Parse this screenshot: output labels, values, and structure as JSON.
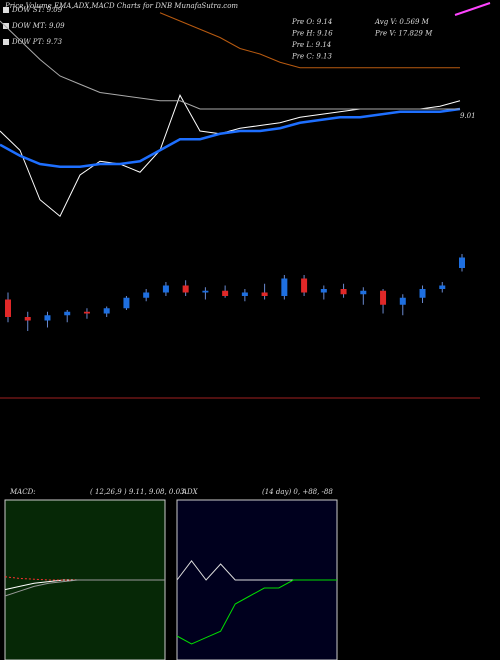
{
  "header": {
    "title": "Price,Volume,EMA,ADX,MACD Charts for DNB MunafaSutra.com",
    "dow": [
      "DOW ST: 9.09",
      "DOW MT: 9.09",
      "DOW PT: 9.73"
    ],
    "stats": [
      "Pre   O: 9.14",
      "Pre   H: 9.16",
      "Pre   L: 9.14",
      "Pre   C: 9.13"
    ],
    "volume": [
      "Avg V: 0.569 M",
      "Pre   V: 17.829 M"
    ]
  },
  "chart_data": [
    {
      "type": "line",
      "annotation": "9.01",
      "ylim": [
        8.6,
        9.4
      ],
      "series": [
        {
          "name": "Price",
          "color": "#ffffff",
          "values": [
            8.96,
            8.89,
            8.71,
            8.65,
            8.8,
            8.85,
            8.84,
            8.81,
            8.89,
            9.09,
            8.96,
            8.95,
            8.97,
            8.98,
            8.99,
            9.01,
            9.02,
            9.03,
            9.04,
            9.04,
            9.04,
            9.04,
            9.05,
            9.07
          ]
        },
        {
          "name": "EMA",
          "color": "#1e6fff",
          "values": [
            8.91,
            8.87,
            8.84,
            8.83,
            8.83,
            8.84,
            8.84,
            8.85,
            8.89,
            8.93,
            8.93,
            8.95,
            8.96,
            8.96,
            8.97,
            8.99,
            9.0,
            9.01,
            9.01,
            9.02,
            9.03,
            9.03,
            9.03,
            9.04
          ]
        },
        {
          "name": "EMA long",
          "color": "#aaaaaa",
          "values": [
            9.36,
            9.29,
            9.22,
            9.16,
            9.13,
            9.1,
            9.09,
            9.08,
            9.07,
            9.07,
            9.04,
            9.04,
            9.04,
            9.04,
            9.04,
            9.04,
            9.04,
            9.04,
            9.04,
            9.04,
            9.04,
            9.04,
            9.04,
            9.04
          ]
        },
        {
          "name": "Trend",
          "color": "#b85a10",
          "values": [
            null,
            null,
            null,
            null,
            null,
            null,
            null,
            null,
            9.39,
            9.36,
            9.33,
            9.3,
            9.26,
            9.24,
            9.21,
            9.19,
            9.19,
            9.19,
            9.19,
            9.19,
            9.19,
            9.19,
            9.19,
            9.19
          ]
        }
      ]
    },
    {
      "type": "candlestick",
      "ylim": [
        8.6,
        9.4
      ],
      "up_color": "#1e6fe0",
      "down_color": "#e02828",
      "open": [
        9.06,
        8.96,
        8.94,
        8.97,
        8.99,
        8.98,
        9.01,
        9.07,
        9.1,
        9.14,
        9.1,
        9.11,
        9.08,
        9.1,
        9.08,
        9.18,
        9.1,
        9.12,
        9.09,
        9.11,
        9.03,
        9.07,
        9.12,
        9.24
      ],
      "high": [
        9.1,
        8.99,
        8.99,
        9.0,
        9.01,
        9.02,
        9.08,
        9.12,
        9.16,
        9.17,
        9.13,
        9.14,
        9.12,
        9.15,
        9.2,
        9.2,
        9.14,
        9.15,
        9.13,
        9.12,
        9.09,
        9.14,
        9.16,
        9.32
      ],
      "low": [
        8.93,
        8.88,
        8.9,
        8.93,
        8.95,
        8.96,
        9.0,
        9.05,
        9.08,
        9.08,
        9.06,
        9.07,
        9.05,
        9.06,
        9.06,
        9.08,
        9.06,
        9.07,
        9.03,
        8.98,
        8.97,
        9.04,
        9.1,
        9.22
      ],
      "close": [
        8.96,
        8.94,
        8.97,
        8.99,
        8.98,
        9.01,
        9.07,
        9.1,
        9.14,
        9.1,
        9.11,
        9.08,
        9.1,
        9.08,
        9.18,
        9.1,
        9.12,
        9.09,
        9.11,
        9.03,
        9.07,
        9.12,
        9.14,
        9.3
      ]
    },
    {
      "type": "line",
      "title": "MACD:",
      "subtitle": "( 12,26,9 ) 9.11, 9.08, 0.03",
      "ylim": [
        -0.5,
        0.5
      ],
      "background": "#062806",
      "series": [
        {
          "name": "MACD",
          "color": "#ffffff",
          "values": [
            -0.06,
            -0.04,
            -0.02,
            -0.01,
            0,
            0,
            0,
            0,
            0,
            0,
            0,
            0
          ]
        },
        {
          "name": "Signal",
          "color": "#ff3030",
          "dash": true,
          "values": [
            0.02,
            0.01,
            0.005,
            0,
            0,
            0,
            0,
            0,
            0,
            0,
            0,
            0
          ]
        },
        {
          "name": "Histogram",
          "color": "#999999",
          "values": [
            -0.1,
            -0.07,
            -0.04,
            -0.02,
            -0.01,
            0,
            0,
            0,
            0,
            0,
            0,
            0
          ]
        }
      ]
    },
    {
      "type": "line",
      "title": "ADX",
      "subtitle": "(14  day) 0, +88, -88",
      "ylim": [
        0,
        100
      ],
      "background": "#00001e",
      "series": [
        {
          "name": "ADX",
          "color": "#dddddd",
          "values": [
            50,
            62,
            50,
            60,
            50,
            50,
            50,
            50,
            50,
            50,
            50,
            50
          ]
        },
        {
          "name": "DI",
          "color": "#00dd00",
          "values": [
            15,
            10,
            14,
            18,
            35,
            40,
            45,
            45,
            50,
            50,
            50,
            50
          ]
        }
      ]
    }
  ]
}
